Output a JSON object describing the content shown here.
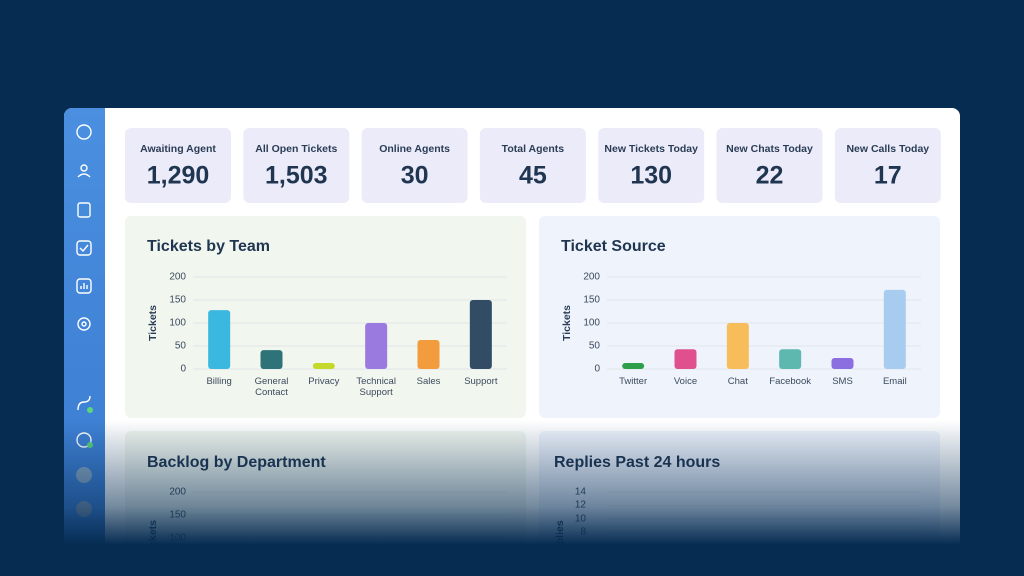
{
  "stats": [
    {
      "label": "Awaiting Agent",
      "value": "1,290"
    },
    {
      "label": "All Open Tickets",
      "value": "1,503"
    },
    {
      "label": "Online Agents",
      "value": "30"
    },
    {
      "label": "Total Agents",
      "value": "45"
    },
    {
      "label": "New Tickets Today",
      "value": "130"
    },
    {
      "label": "New Chats Today",
      "value": "22"
    },
    {
      "label": "New Calls Today",
      "value": "17"
    }
  ],
  "chart_data": [
    {
      "type": "bar",
      "title": "Tickets by Team",
      "y_label": "Tickets",
      "categories": [
        "Billing",
        "General Contact",
        "Privacy",
        "Technical Support",
        "Sales",
        "Support"
      ],
      "values": [
        128,
        41,
        13,
        100,
        63,
        150
      ],
      "colors": [
        "#3bb8e0",
        "#2d7377",
        "#c5d92a",
        "#9b7ae0",
        "#f39c3d",
        "#324c66"
      ],
      "ylim": [
        0,
        200
      ],
      "yticks": [
        0,
        50,
        100,
        150,
        200
      ],
      "grid": true,
      "background": "#f1f6ef"
    },
    {
      "type": "bar",
      "title": "Ticket Source",
      "y_label": "Tickets",
      "categories": [
        "Twitter",
        "Voice",
        "Chat",
        "Facebook",
        "SMS",
        "Email"
      ],
      "values": [
        13,
        43,
        100,
        43,
        24,
        172
      ],
      "colors": [
        "#2e9e4a",
        "#e0508e",
        "#f7bd5a",
        "#5fb8b0",
        "#8b6ee0",
        "#a8ccef"
      ],
      "ylim": [
        0,
        200
      ],
      "yticks": [
        0,
        50,
        100,
        150,
        200
      ],
      "grid": true,
      "background": "#eef3fc"
    },
    {
      "type": "bar",
      "title": "Backlog by Department",
      "y_label": "Tickets",
      "ylim": [
        0,
        200
      ],
      "yticks": [
        100,
        150,
        200
      ],
      "grid": true,
      "background": "#f1f6ef"
    },
    {
      "type": "bar",
      "title": "Replies Past 24 hours",
      "y_label": "Replies",
      "ylim": [
        0,
        14
      ],
      "yticks": [
        8,
        10,
        12,
        14
      ],
      "grid": true,
      "background": "#eef3fc"
    }
  ]
}
